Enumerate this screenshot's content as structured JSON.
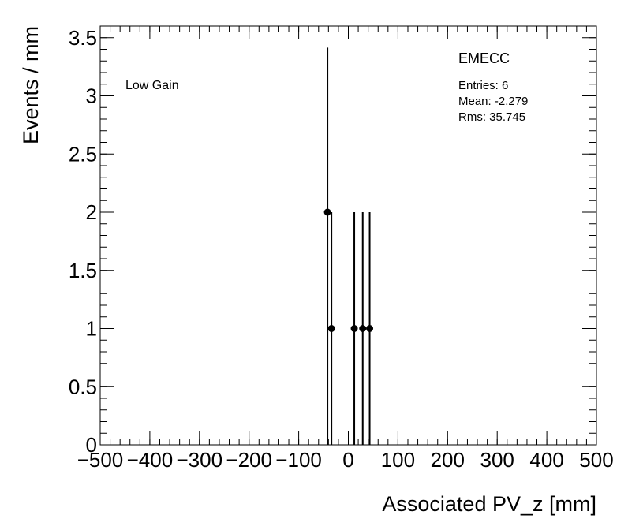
{
  "chart_data": {
    "type": "scatter",
    "title": "EMECC",
    "annotation": "Low Gain",
    "stats": {
      "entries": "Entries: 6",
      "mean": "Mean: -2.279",
      "rms": "Rms: 35.745"
    },
    "xlabel": "Associated PV_z [mm]",
    "ylabel": "Events / mm",
    "xlim": [
      -500,
      500
    ],
    "ylim": [
      0,
      3.6
    ],
    "x_ticks": [
      -500,
      -400,
      -300,
      -200,
      -100,
      0,
      100,
      200,
      300,
      400,
      500
    ],
    "x_tick_labels": [
      "−500",
      "−400",
      "−300",
      "−200",
      "−100",
      "0",
      "100",
      "200",
      "300",
      "400",
      "500"
    ],
    "y_ticks": [
      0,
      0.5,
      1,
      1.5,
      2,
      2.5,
      3,
      3.5
    ],
    "y_tick_labels": [
      "0",
      "0.5",
      "1",
      "1.5",
      "2",
      "2.5",
      "3",
      "3.5"
    ],
    "grid": false,
    "series": [
      {
        "points": [
          {
            "x": -42,
            "y": 2,
            "err_low": 2,
            "err_high": 1.414
          },
          {
            "x": -34,
            "y": 1,
            "err_low": 1,
            "err_high": 1
          },
          {
            "x": 12,
            "y": 1,
            "err_low": 1,
            "err_high": 1
          },
          {
            "x": 29,
            "y": 1,
            "err_low": 1,
            "err_high": 1
          },
          {
            "x": 43,
            "y": 1,
            "err_low": 1,
            "err_high": 1
          }
        ]
      }
    ]
  }
}
